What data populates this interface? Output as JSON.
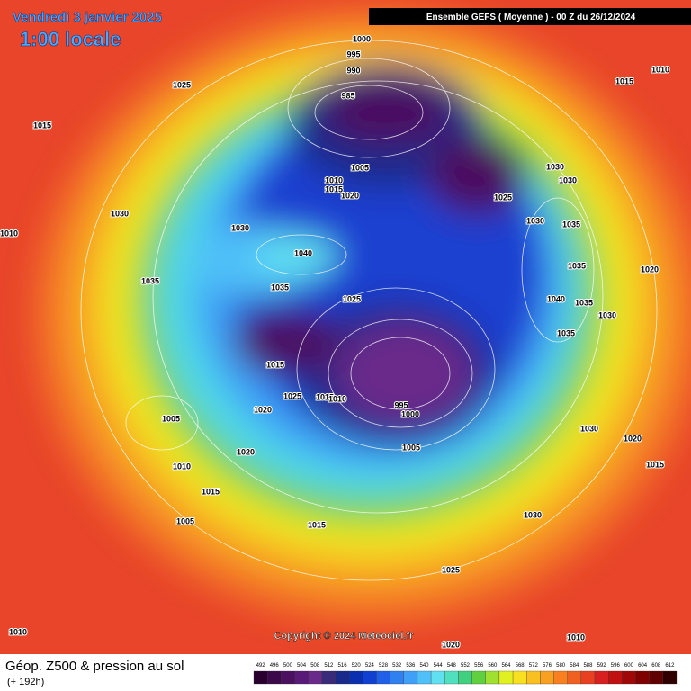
{
  "header": {
    "date": "Vendredi 3 janvier 2025",
    "time": "1:00 locale",
    "run": "Ensemble GEFS  ( Moyenne )  -  00 Z du 26/12/2024"
  },
  "map": {
    "pressure_labels": [
      "1000",
      "995",
      "990",
      "985",
      "1025",
      "1015",
      "1010",
      "1015",
      "1005",
      "1010",
      "1015",
      "1020",
      "1030",
      "1030",
      "1025",
      "1030",
      "1035",
      "1030",
      "1030",
      "1010",
      "1040",
      "1035",
      "1020",
      "1035",
      "1035",
      "1025",
      "1040",
      "1035",
      "1030",
      "1035",
      "1015",
      "1025",
      "1015",
      "1010",
      "1020",
      "995",
      "1000",
      "1005",
      "1030",
      "1020",
      "1005",
      "1020",
      "1010",
      "1015",
      "1015",
      "1030",
      "1005",
      "1015",
      "1025",
      "1010",
      "1010",
      "1020"
    ]
  },
  "copyright": "Copyright © 2024 Meteociel.fr",
  "footer": {
    "title": "Géop. Z500 & pression au sol",
    "lead": "(+ 192h)"
  },
  "legend": {
    "values": [
      492,
      496,
      500,
      504,
      508,
      512,
      516,
      520,
      524,
      528,
      532,
      536,
      540,
      544,
      548,
      552,
      556,
      560,
      564,
      568,
      572,
      576,
      580,
      584,
      588,
      592,
      596,
      600,
      604,
      608,
      612
    ],
    "colors": [
      "#2a0030",
      "#3c0a4a",
      "#4b1060",
      "#5a1a78",
      "#6a2a8a",
      "#3a2a7a",
      "#1a2a8a",
      "#0a30b0",
      "#1040d0",
      "#2060e8",
      "#3080f0",
      "#40a0f8",
      "#50c0f8",
      "#60e0f0",
      "#50e0c0",
      "#40d080",
      "#60d040",
      "#a0e030",
      "#e0f020",
      "#f8e020",
      "#f8c020",
      "#f8a020",
      "#f88020",
      "#f06020",
      "#e84020",
      "#d82020",
      "#c01010",
      "#a00808",
      "#800000",
      "#600000",
      "#300000"
    ]
  }
}
